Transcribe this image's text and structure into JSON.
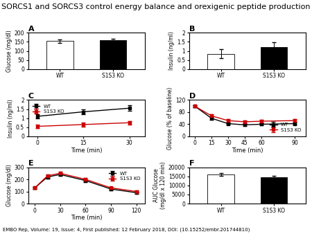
{
  "title": "SORCS1 and SORCS3 control energy balance and orexigenic peptide production",
  "footer": "EMBO Rep, Volume: 19, Issue: 4, First published: 12 February 2018, DOI: (10.15252/embr.201744810)",
  "chart_data": [
    {
      "type": "bar",
      "label": "A",
      "ylabel": "Glucose (mg/dl)",
      "categories": [
        "WT",
        "S1S3 KO"
      ],
      "values": [
        155,
        160
      ],
      "errors": [
        10,
        8
      ],
      "colors": [
        "#ffffff",
        "#000000"
      ],
      "ylim": [
        0,
        200
      ],
      "yticks": [
        0,
        50,
        100,
        150,
        200
      ]
    },
    {
      "type": "bar",
      "label": "B",
      "ylabel": "Insulin (ng/ml)",
      "categories": [
        "WT",
        "S1S3 KO"
      ],
      "values": [
        0.85,
        1.2
      ],
      "errors": [
        0.25,
        0.28
      ],
      "colors": [
        "#ffffff",
        "#000000"
      ],
      "ylim": [
        0,
        2.0
      ],
      "yticks": [
        0,
        0.5,
        1,
        1.5,
        2
      ]
    },
    {
      "type": "line",
      "label": "C",
      "ylabel": "Insulin (ng/ml)",
      "xlabel": "Time (min)",
      "x": [
        0,
        15,
        30
      ],
      "marker": "square",
      "legend": "upper left",
      "series": [
        {
          "name": "WT",
          "color": "#000000",
          "values": [
            1.1,
            1.35,
            1.55
          ],
          "errors": [
            0.1,
            0.12,
            0.15
          ]
        },
        {
          "name": "S1S3 KO",
          "color": "#cc0000",
          "values": [
            0.55,
            0.65,
            0.75
          ],
          "errors": [
            0.08,
            0.1,
            0.1
          ]
        }
      ],
      "xlim": [
        -3,
        35
      ],
      "xticks": [
        0,
        15,
        30
      ],
      "ylim": [
        0,
        2.0
      ],
      "yticks": [
        0,
        0.5,
        1,
        1.5,
        2
      ]
    },
    {
      "type": "line",
      "label": "D",
      "ylabel": "Glucose (% of baseline)",
      "xlabel": "Time (min)",
      "x": [
        0,
        15,
        30,
        45,
        60,
        90
      ],
      "marker": "square",
      "legend": "lower right",
      "series": [
        {
          "name": "WT",
          "color": "#000000",
          "values": [
            100,
            60,
            42,
            38,
            40,
            42
          ],
          "errors": [
            3,
            5,
            4,
            4,
            4,
            4
          ]
        },
        {
          "name": "S1S3 KO",
          "color": "#cc0000",
          "values": [
            100,
            68,
            52,
            48,
            50,
            52
          ],
          "errors": [
            3,
            5,
            4,
            4,
            4,
            4
          ]
        }
      ],
      "xlim": [
        -5,
        100
      ],
      "xticks": [
        0,
        15,
        30,
        45,
        60,
        90
      ],
      "ylim": [
        0,
        120
      ],
      "yticks": [
        0,
        40,
        80,
        120
      ]
    },
    {
      "type": "line",
      "label": "E",
      "ylabel": "Glucose (mg/dl)",
      "xlabel": "Time (min)",
      "x": [
        0,
        15,
        30,
        60,
        90,
        120
      ],
      "marker": "square",
      "legend": "upper right",
      "series": [
        {
          "name": "WT",
          "color": "#000000",
          "values": [
            130,
            220,
            240,
            190,
            120,
            90
          ],
          "errors": [
            8,
            12,
            12,
            10,
            10,
            8
          ]
        },
        {
          "name": "S1S3 KO",
          "color": "#cc0000",
          "values": [
            130,
            230,
            250,
            200,
            130,
            100
          ],
          "errors": [
            8,
            12,
            12,
            10,
            10,
            8
          ]
        }
      ],
      "xlim": [
        -8,
        130
      ],
      "xticks": [
        0,
        30,
        60,
        90,
        120
      ],
      "ylim": [
        0,
        300
      ],
      "yticks": [
        0,
        100,
        200,
        300
      ]
    },
    {
      "type": "bar",
      "label": "F",
      "ylabel": "AUC Glucose\n(mg/dl x 120 min)",
      "categories": [
        "WT",
        "S1S3 KO"
      ],
      "values": [
        16000,
        14500
      ],
      "errors": [
        700,
        600
      ],
      "colors": [
        "#ffffff",
        "#000000"
      ],
      "ylim": [
        0,
        20000
      ],
      "yticks": [
        0,
        5000,
        10000,
        15000,
        20000
      ]
    }
  ]
}
